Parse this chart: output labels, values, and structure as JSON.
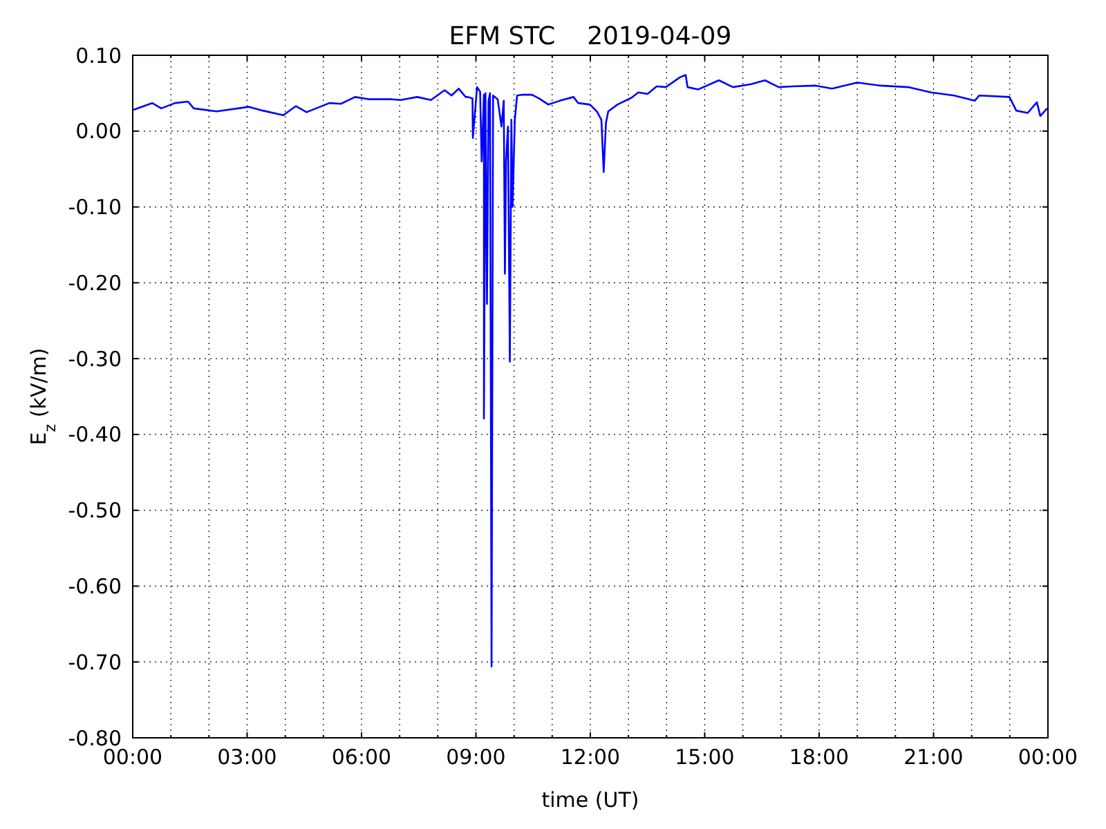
{
  "chart_data": {
    "type": "line",
    "title": "EFM STC    2019-04-09",
    "xlabel": "time (UT)",
    "ylabel": "E$_{z}$ (kV/m)",
    "xlim": [
      0,
      24
    ],
    "ylim": [
      -0.8,
      0.1
    ],
    "xticks": [
      {
        "value": 0,
        "label": "00:00"
      },
      {
        "value": 1,
        "label": null
      },
      {
        "value": 2,
        "label": null
      },
      {
        "value": 3,
        "label": "03:00"
      },
      {
        "value": 4,
        "label": null
      },
      {
        "value": 5,
        "label": null
      },
      {
        "value": 6,
        "label": "06:00"
      },
      {
        "value": 7,
        "label": null
      },
      {
        "value": 8,
        "label": null
      },
      {
        "value": 9,
        "label": "09:00"
      },
      {
        "value": 10,
        "label": null
      },
      {
        "value": 11,
        "label": null
      },
      {
        "value": 12,
        "label": "12:00"
      },
      {
        "value": 13,
        "label": null
      },
      {
        "value": 14,
        "label": null
      },
      {
        "value": 15,
        "label": "15:00"
      },
      {
        "value": 16,
        "label": null
      },
      {
        "value": 17,
        "label": null
      },
      {
        "value": 18,
        "label": "18:00"
      },
      {
        "value": 19,
        "label": null
      },
      {
        "value": 20,
        "label": null
      },
      {
        "value": 21,
        "label": "21:00"
      },
      {
        "value": 22,
        "label": null
      },
      {
        "value": 23,
        "label": null
      },
      {
        "value": 24,
        "label": "00:00"
      }
    ],
    "yticks": [
      {
        "value": 0.1,
        "label": "0.10"
      },
      {
        "value": 0,
        "label": "0.00"
      },
      {
        "value": -0.1,
        "label": "-0.10"
      },
      {
        "value": -0.2,
        "label": "-0.20"
      },
      {
        "value": -0.3,
        "label": "-0.30"
      },
      {
        "value": -0.4,
        "label": "-0.40"
      },
      {
        "value": -0.5,
        "label": "-0.50"
      },
      {
        "value": -0.6,
        "label": "-0.60"
      },
      {
        "value": -0.7,
        "label": "-0.70"
      },
      {
        "value": -0.8,
        "label": "-0.80"
      }
    ],
    "grid": true,
    "line_style": "solid",
    "marker": "none",
    "series": [
      {
        "color": "#0000ff",
        "x": [
          0.02,
          0.51,
          0.75,
          1.11,
          1.45,
          1.6,
          2.2,
          3.05,
          3.41,
          3.95,
          4.28,
          4.56,
          5.16,
          5.46,
          5.83,
          6.2,
          6.79,
          7.03,
          7.46,
          7.82,
          8.18,
          8.36,
          8.55,
          8.73,
          8.79,
          8.91,
          8.92,
          9.03,
          9.11,
          9.15,
          9.21,
          9.21,
          9.25,
          9.29,
          9.33,
          9.37,
          9.41,
          9.45,
          9.57,
          9.67,
          9.73,
          9.76,
          9.79,
          9.84,
          9.89,
          9.93,
          9.96,
          10.02,
          10.08,
          10.23,
          10.47,
          10.66,
          10.9,
          11.2,
          11.56,
          11.68,
          11.99,
          12.17,
          12.29,
          12.35,
          12.41,
          12.47,
          12.71,
          13.08,
          13.26,
          13.5,
          13.74,
          13.98,
          14.35,
          14.5,
          14.55,
          14.83,
          15.37,
          15.74,
          16.22,
          16.58,
          16.94,
          17.31,
          17.91,
          18.34,
          19.0,
          19.6,
          20.33,
          20.93,
          21.54,
          22.08,
          22.2,
          22.99,
          23.17,
          23.47,
          23.71,
          23.8,
          23.98
        ],
        "values": [
          0.028,
          0.037,
          0.03,
          0.037,
          0.039,
          0.03,
          0.026,
          0.032,
          0.027,
          0.021,
          0.033,
          0.025,
          0.037,
          0.036,
          0.045,
          0.042,
          0.042,
          0.041,
          0.045,
          0.041,
          0.054,
          0.047,
          0.056,
          0.045,
          0.045,
          0.043,
          -0.009,
          0.058,
          0.052,
          -0.04,
          0.048,
          -0.379,
          0.05,
          -0.228,
          0.04,
          0.05,
          -0.706,
          0.047,
          0.042,
          0.006,
          0.04,
          -0.188,
          -0.04,
          0.006,
          -0.304,
          0.015,
          -0.1,
          0.015,
          0.047,
          0.048,
          0.048,
          0.043,
          0.035,
          0.04,
          0.045,
          0.037,
          0.035,
          0.026,
          0.015,
          -0.054,
          0.011,
          0.026,
          0.035,
          0.044,
          0.051,
          0.049,
          0.059,
          0.058,
          0.071,
          0.074,
          0.058,
          0.055,
          0.067,
          0.058,
          0.062,
          0.067,
          0.058,
          0.059,
          0.06,
          0.056,
          0.064,
          0.06,
          0.058,
          0.051,
          0.047,
          0.04,
          0.047,
          0.045,
          0.027,
          0.024,
          0.038,
          0.02,
          0.03
        ]
      }
    ]
  }
}
